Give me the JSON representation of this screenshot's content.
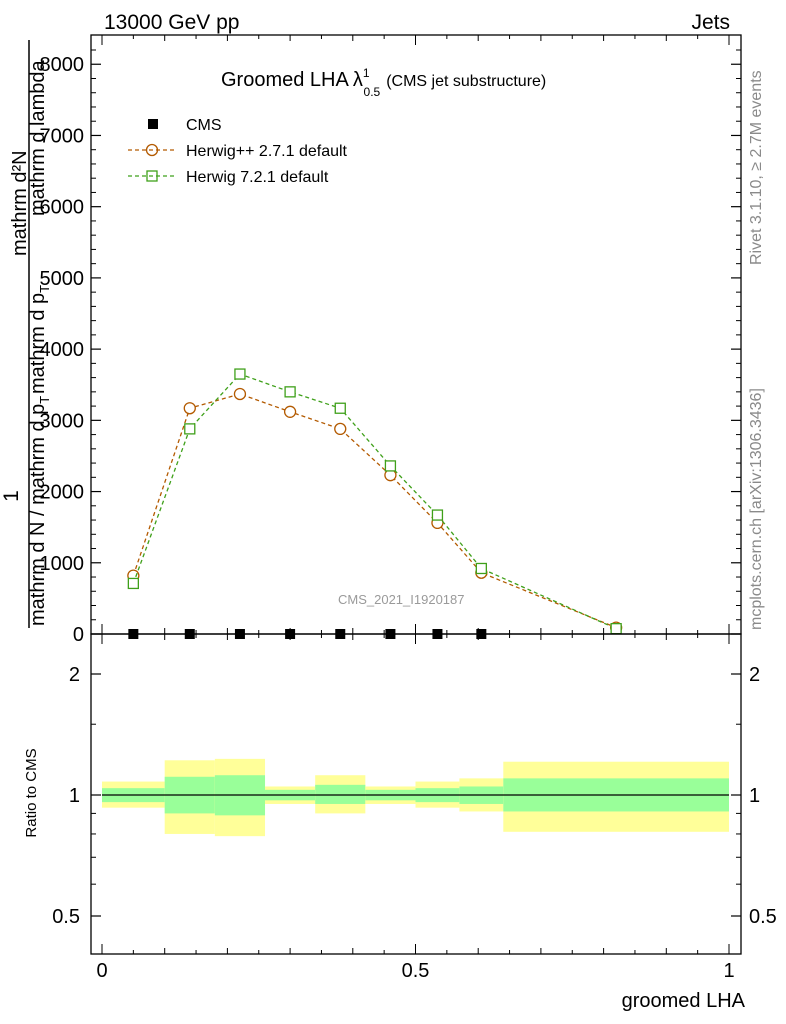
{
  "header": {
    "energy_label": "13000 GeV pp",
    "category_label": "Jets"
  },
  "side_texts": {
    "rivet": "Rivet 3.1.10, ≥ 2.7M events",
    "mcplots": "mcplots.cern.ch [arXiv:1306.3436]"
  },
  "watermark": "CMS_2021_I1920187",
  "colors": {
    "herwigpp": "#b35a00",
    "herwig7": "#3fa01a",
    "band_outer": "#ffff99",
    "band_inner": "#99ff99",
    "axis": "#000000"
  },
  "chart_data": [
    {
      "type": "line",
      "title": "Groomed LHA",
      "title_lambda": "λ",
      "title_sup": "1",
      "title_sub": "0.5",
      "title_suffix": "(CMS jet substructure)",
      "ylabel_left": "1",
      "ylabel_num": "mathrm d²N",
      "ylabel_den1": "mathrm d N / mathrm d p",
      "ylabel_den1_sub": "T",
      "ylabel_den2": "mathrm d p",
      "ylabel_den2_sub": "T",
      "ylabel_den3": "mathrm d lambda",
      "xlim": [
        0,
        1
      ],
      "ylim": [
        0,
        8200
      ],
      "yticks": [
        0,
        1000,
        2000,
        3000,
        4000,
        5000,
        6000,
        7000,
        8000
      ],
      "ytick_labels": [
        "0",
        "1000",
        "2000",
        "3000",
        "4000",
        "5000",
        "6000",
        "7000",
        "8000"
      ],
      "legend_position": "top-left",
      "series": [
        {
          "name": "CMS",
          "marker": "square-filled",
          "x": [
            0.05,
            0.14,
            0.22,
            0.3,
            0.38,
            0.46,
            0.535,
            0.605
          ],
          "y": [
            0,
            0,
            0,
            0,
            0,
            0,
            0,
            0
          ]
        },
        {
          "name": "Herwig++ 2.7.1 default",
          "marker": "circle",
          "x": [
            0.05,
            0.14,
            0.22,
            0.3,
            0.38,
            0.46,
            0.535,
            0.605,
            0.82
          ],
          "y": [
            820,
            3170,
            3370,
            3120,
            2880,
            2230,
            1560,
            860,
            90
          ]
        },
        {
          "name": "Herwig 7.2.1 default",
          "marker": "square",
          "x": [
            0.05,
            0.14,
            0.22,
            0.3,
            0.38,
            0.46,
            0.535,
            0.605,
            0.82
          ],
          "y": [
            710,
            2880,
            3650,
            3400,
            3170,
            2360,
            1670,
            920,
            75
          ]
        }
      ]
    },
    {
      "type": "area",
      "ylabel": "Ratio to CMS",
      "xlabel": "groomed LHA",
      "xlim": [
        0,
        1
      ],
      "ylim": [
        0.43,
        2.35
      ],
      "log_y": true,
      "yticks": [
        0.5,
        1,
        2
      ],
      "ytick_labels": [
        "0.5",
        "1",
        "2"
      ],
      "xticks": [
        0,
        0.5,
        1
      ],
      "xtick_labels": [
        "0",
        "0.5",
        "1"
      ],
      "bands": [
        {
          "x0": 0.0,
          "x1": 0.1,
          "outer": [
            0.93,
            1.08
          ],
          "inner": [
            0.96,
            1.04
          ]
        },
        {
          "x0": 0.1,
          "x1": 0.18,
          "outer": [
            0.8,
            1.22
          ],
          "inner": [
            0.9,
            1.11
          ]
        },
        {
          "x0": 0.18,
          "x1": 0.26,
          "outer": [
            0.79,
            1.23
          ],
          "inner": [
            0.89,
            1.12
          ]
        },
        {
          "x0": 0.26,
          "x1": 0.34,
          "outer": [
            0.95,
            1.05
          ],
          "inner": [
            0.97,
            1.03
          ]
        },
        {
          "x0": 0.34,
          "x1": 0.42,
          "outer": [
            0.9,
            1.12
          ],
          "inner": [
            0.95,
            1.06
          ]
        },
        {
          "x0": 0.42,
          "x1": 0.5,
          "outer": [
            0.95,
            1.05
          ],
          "inner": [
            0.97,
            1.03
          ]
        },
        {
          "x0": 0.5,
          "x1": 0.57,
          "outer": [
            0.93,
            1.08
          ],
          "inner": [
            0.96,
            1.04
          ]
        },
        {
          "x0": 0.57,
          "x1": 0.64,
          "outer": [
            0.91,
            1.1
          ],
          "inner": [
            0.95,
            1.05
          ]
        },
        {
          "x0": 0.64,
          "x1": 1.0,
          "outer": [
            0.81,
            1.21
          ],
          "inner": [
            0.91,
            1.1
          ]
        }
      ]
    }
  ]
}
